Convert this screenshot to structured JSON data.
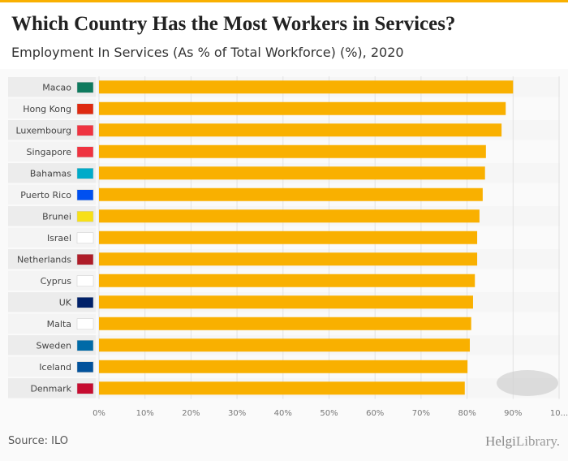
{
  "header": {
    "title": "Which Country Has the Most Workers in Services?",
    "subtitle": "Employment In Services (As % of Total Workforce) (%), 2020"
  },
  "footer": {
    "source": "Source: ILO",
    "logo_a": "Helgi",
    "logo_b": "Library."
  },
  "colors": {
    "bar": "#f9b000",
    "band": "#ececec"
  },
  "chart_data": {
    "type": "bar",
    "orientation": "horizontal",
    "title": "Which Country Has the Most Workers in Services?",
    "subtitle": "Employment In Services (As % of Total Workforce) (%), 2020",
    "categories": [
      "Macao",
      "Hong Kong",
      "Luxembourg",
      "Singapore",
      "Bahamas",
      "Puerto Rico",
      "Brunei",
      "Israel",
      "Netherlands",
      "Cyprus",
      "UK",
      "Malta",
      "Sweden",
      "Iceland",
      "Denmark"
    ],
    "values": [
      90.0,
      88.4,
      87.5,
      84.1,
      83.9,
      83.4,
      82.7,
      82.2,
      82.2,
      81.7,
      81.3,
      80.9,
      80.6,
      80.1,
      79.5
    ],
    "xlim": [
      0,
      100
    ],
    "xticks": [
      "0%",
      "10%",
      "20%",
      "30%",
      "40%",
      "50%",
      "60%",
      "70%",
      "80%",
      "90%",
      "10..."
    ],
    "xlabel": "",
    "ylabel": "",
    "grid": true
  }
}
